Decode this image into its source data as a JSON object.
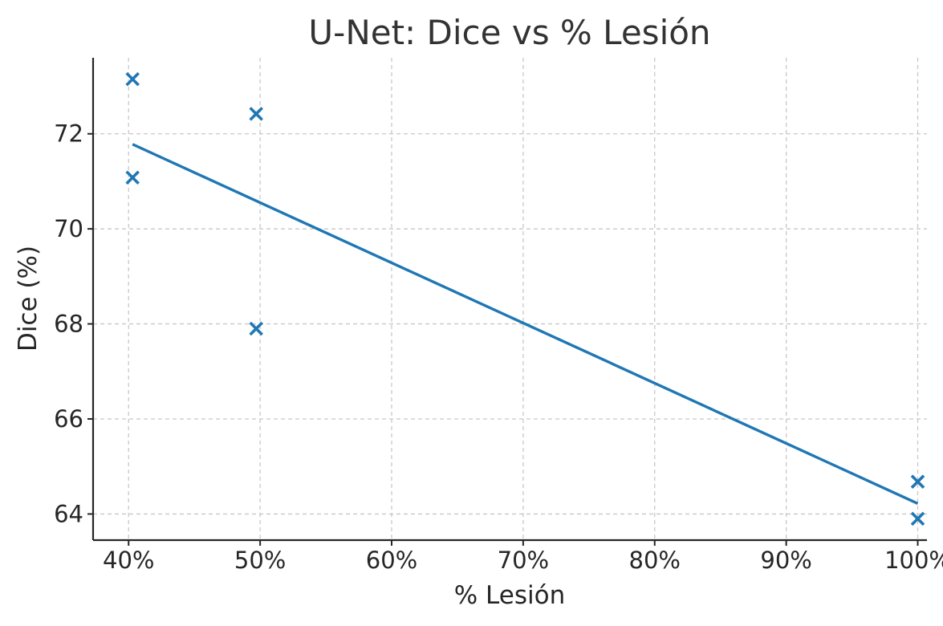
{
  "chart_data": {
    "type": "scatter",
    "title": "U-Net: Dice vs % Lesión",
    "xlabel": "% Lesión",
    "ylabel": "Dice (%)",
    "xlim": [
      37.3,
      100.7
    ],
    "ylim": [
      63.45,
      73.6
    ],
    "xticks": [
      40,
      50,
      60,
      70,
      80,
      90,
      100
    ],
    "xtick_labels": [
      "40%",
      "50%",
      "60%",
      "70%",
      "80%",
      "90%",
      "100%"
    ],
    "yticks": [
      64,
      66,
      68,
      70,
      72
    ],
    "ytick_labels": [
      "64",
      "66",
      "68",
      "70",
      "72"
    ],
    "grid": true,
    "marker": "x",
    "color": "#1f77b4",
    "points": [
      {
        "x": 40.3,
        "y": 73.15
      },
      {
        "x": 40.3,
        "y": 71.08
      },
      {
        "x": 49.7,
        "y": 72.42
      },
      {
        "x": 49.7,
        "y": 67.9
      },
      {
        "x": 100.0,
        "y": 64.68
      },
      {
        "x": 100.0,
        "y": 63.9
      }
    ],
    "trend_line": {
      "x": [
        40.3,
        100.0
      ],
      "y": [
        71.78,
        64.22
      ]
    }
  }
}
